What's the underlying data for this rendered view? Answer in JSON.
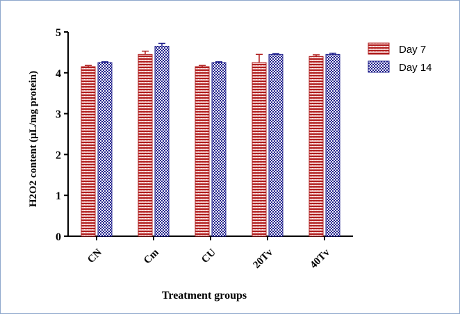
{
  "colors": {
    "day7_fill": "#b01e1e",
    "day7_light": "#f2c6c6",
    "day14_fill": "#1f1f8c",
    "day14_light": "#ffffff",
    "frame_border": "#8ea7cc",
    "axis": "#000000"
  },
  "chart_data": {
    "type": "bar",
    "title": "",
    "xlabel": "Treatment groups",
    "ylabel": "H2O2 content (µL/mg protein)",
    "ylim": [
      0,
      5
    ],
    "yticks": [
      "0",
      "1",
      "2",
      "3",
      "4",
      "5"
    ],
    "categories": [
      "CN",
      "Cm",
      "CU",
      "20Tv",
      "40Tv"
    ],
    "series": [
      {
        "name": "Day 7",
        "values": [
          4.15,
          4.45,
          4.15,
          4.25,
          4.4
        ],
        "errors": [
          0.03,
          0.08,
          0.03,
          0.2,
          0.04
        ]
      },
      {
        "name": "Day 14",
        "values": [
          4.25,
          4.65,
          4.25,
          4.45,
          4.45
        ],
        "errors": [
          0.02,
          0.07,
          0.02,
          0.02,
          0.03
        ]
      }
    ],
    "grid": false,
    "legend": "top-right"
  }
}
